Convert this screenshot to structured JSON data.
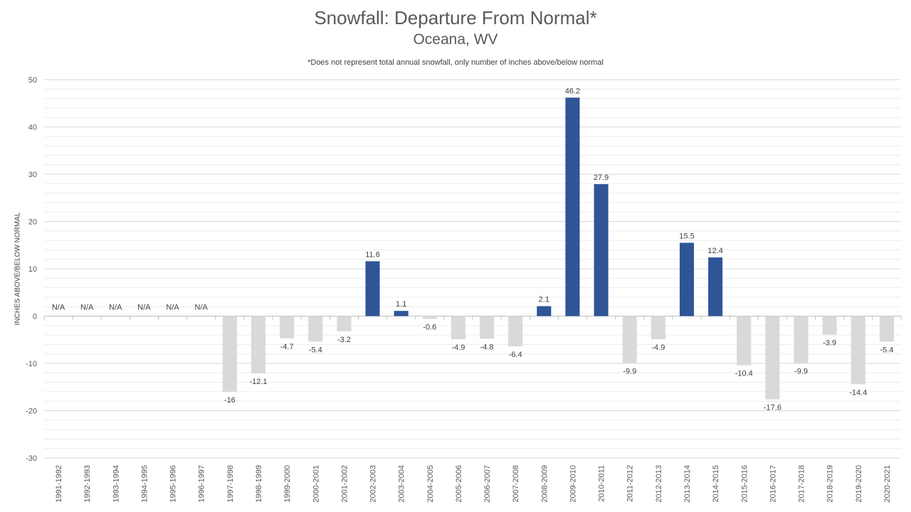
{
  "chart_data": {
    "type": "bar",
    "title": "Snowfall: Departure From Normal*",
    "subtitle": "Oceana, WV",
    "note": "*Does not represent  total annual snowfall, only number of inches above/below normal",
    "xlabel": "",
    "ylabel": "INCHES ABOVE/BELOW NORMAL",
    "ylim": [
      -30,
      50
    ],
    "yticks": [
      50,
      40,
      30,
      20,
      10,
      0,
      -10,
      -20,
      -30
    ],
    "grid": true,
    "categories": [
      "1991-1992",
      "1992-1993",
      "1993-1994",
      "1994-1995",
      "1995-1996",
      "1996-1997",
      "1997-1998",
      "1998-1999",
      "1999-2000",
      "2000-2001",
      "2001-2002",
      "2002-2003",
      "2003-2004",
      "2004-2005",
      "2005-2006",
      "2006-2007",
      "2007-2008",
      "2008-2009",
      "2009-2010",
      "2010-2011",
      "2011-2012",
      "2012-2013",
      "2013-2014",
      "2014-2015",
      "2015-2016",
      "2016-2017",
      "2017-2018",
      "2018-2019",
      "2019-2020",
      "2020-2021"
    ],
    "values": [
      null,
      null,
      null,
      null,
      null,
      null,
      -16,
      -12.1,
      -4.7,
      -5.4,
      -3.2,
      11.6,
      1.1,
      -0.6,
      -4.9,
      -4.8,
      -6.4,
      2.1,
      46.2,
      27.9,
      -9.9,
      -4.9,
      15.5,
      12.4,
      -10.4,
      -17.6,
      -9.9,
      -3.9,
      -14.4,
      -5.4
    ],
    "data_labels": [
      "N/A",
      "N/A",
      "N/A",
      "N/A",
      "N/A",
      "N/A",
      "-16",
      "-12.1",
      "-4.7",
      "-5.4",
      "-3.2",
      "11.6",
      "1.1",
      "-0.6",
      "-4.9",
      "-4.8",
      "-6.4",
      "2.1",
      "46.2",
      "27.9",
      "-9.9",
      "-4.9",
      "15.5",
      "12.4",
      "-10.4",
      "-17.6",
      "-9.9",
      "-3.9",
      "-14.4",
      "-5.4"
    ],
    "colors": {
      "positive": "#2f5597",
      "negative": "#d9d9d9",
      "grid": "#d9d9d9",
      "minor_grid": "#ececec"
    }
  }
}
